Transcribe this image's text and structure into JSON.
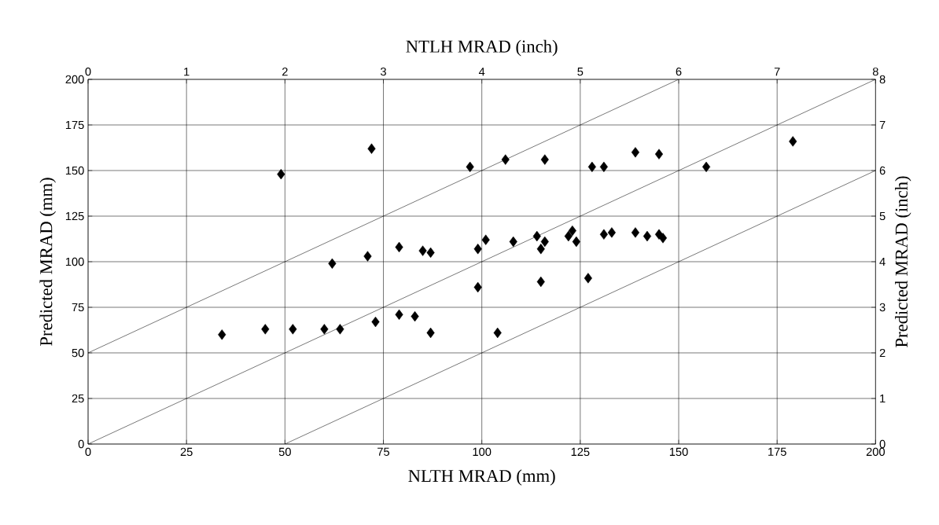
{
  "chart_data": {
    "type": "scatter",
    "xlabel": "NLTH MRAD (mm)",
    "ylabel": "Predicted MRAD (mm)",
    "x2label": "NTLH MRAD (inch)",
    "y2label": "Predicted MRAD (inch)",
    "xlim": [
      0,
      200
    ],
    "xticks": [
      0,
      25,
      50,
      75,
      100,
      125,
      150,
      175,
      200
    ],
    "ylim": [
      0,
      200
    ],
    "yticks": [
      0,
      25,
      50,
      75,
      100,
      125,
      150,
      175,
      200
    ],
    "x2lim": [
      0,
      8
    ],
    "x2ticks": [
      0,
      1,
      2,
      3,
      4,
      5,
      6,
      7,
      8
    ],
    "y2lim": [
      0,
      8
    ],
    "y2ticks": [
      0,
      1,
      2,
      3,
      4,
      5,
      6,
      7,
      8
    ],
    "grid": true,
    "legend": false,
    "marker": "diamond",
    "series": [
      {
        "color": "#000000",
        "x": [
          34,
          45,
          52,
          60,
          64,
          49,
          62,
          71,
          72,
          73,
          79,
          79,
          83,
          85,
          87,
          87,
          97,
          99,
          99,
          101,
          104,
          106,
          108,
          114,
          115,
          115,
          116,
          116,
          122,
          123,
          124,
          127,
          128,
          131,
          131,
          133,
          139,
          139,
          142,
          145,
          145,
          146,
          157,
          179
        ],
        "values": [
          60,
          63,
          63,
          63,
          63,
          148,
          99,
          103,
          162,
          67,
          108,
          71,
          70,
          106,
          105,
          61,
          152,
          107,
          86,
          112,
          61,
          156,
          111,
          114,
          107,
          89,
          111,
          156,
          114,
          117,
          111,
          91,
          152,
          152,
          115,
          116,
          160,
          116,
          114,
          159,
          115,
          113,
          152,
          166
        ]
      },
      {
        "type": "line",
        "marker": "none",
        "color": "#000000",
        "x": [
          0,
          150
        ],
        "values": [
          50,
          200
        ]
      },
      {
        "type": "line",
        "marker": "none",
        "color": "#000000",
        "x": [
          0,
          200
        ],
        "values": [
          0,
          200
        ]
      },
      {
        "type": "line",
        "marker": "none",
        "color": "#000000",
        "x": [
          50,
          200
        ],
        "values": [
          0,
          150
        ]
      }
    ]
  }
}
